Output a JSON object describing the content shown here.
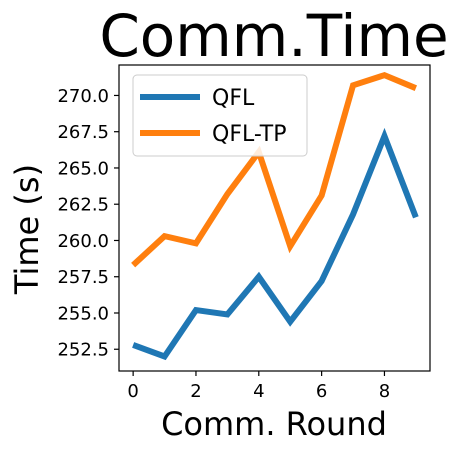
{
  "chart_data": {
    "type": "line",
    "title": "Comm.Time",
    "xlabel": "Comm. Round",
    "ylabel": "Time (s)",
    "x": [
      0,
      1,
      2,
      3,
      4,
      5,
      6,
      7,
      8,
      9
    ],
    "xlim": [
      -0.45,
      9.45
    ],
    "ylim": [
      251.0,
      272.1
    ],
    "xticks": [
      0,
      2,
      4,
      6,
      8
    ],
    "yticks": [
      252.5,
      255.0,
      257.5,
      260.0,
      262.5,
      265.0,
      267.5,
      270.0
    ],
    "ytick_labels": [
      "252.5",
      "255.0",
      "257.5",
      "260.0",
      "262.5",
      "265.0",
      "267.5",
      "270.0"
    ],
    "grid": false,
    "legend_position": "top-left",
    "series": [
      {
        "name": "QFL",
        "color": "#1f77b4",
        "values": [
          252.8,
          252.0,
          255.2,
          254.9,
          257.5,
          254.4,
          257.2,
          261.8,
          267.2,
          261.6
        ]
      },
      {
        "name": "QFL-TP",
        "color": "#ff7f0e",
        "values": [
          258.3,
          260.3,
          259.8,
          263.2,
          266.1,
          259.6,
          263.1,
          270.7,
          271.4,
          270.5
        ]
      }
    ]
  }
}
